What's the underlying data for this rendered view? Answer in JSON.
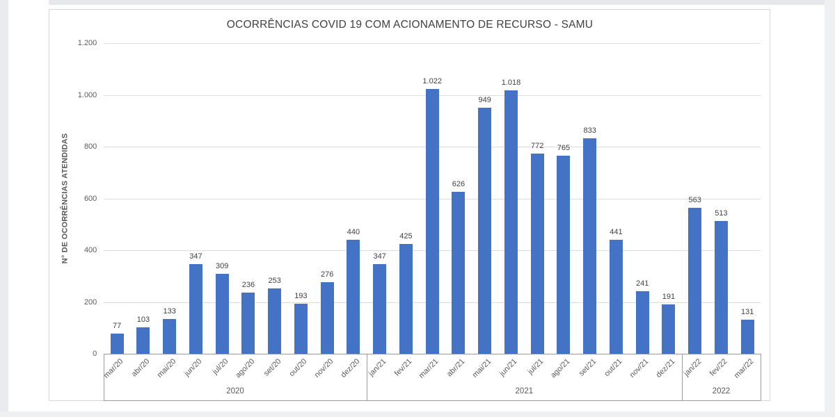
{
  "window": {
    "background_color": "#ffffff",
    "surround_color": "#e9ebee"
  },
  "chart_data": {
    "type": "bar",
    "title": "OCORRÊNCIAS COVID 19 COM ACIONAMENTO DE RECURSO - SAMU",
    "xlabel": "",
    "ylabel": "N° DE OCORRÊNCIAS ATENDIDAS",
    "ylim": [
      0,
      1200
    ],
    "grid": true,
    "legend": "none",
    "bar_color": "#4472C4",
    "gridline_color": "#dcdcdc",
    "axis_color": "#9a9a9a",
    "yticks": [
      {
        "value": 0,
        "label": "0"
      },
      {
        "value": 200,
        "label": "200"
      },
      {
        "value": 400,
        "label": "400"
      },
      {
        "value": 600,
        "label": "600"
      },
      {
        "value": 800,
        "label": "800"
      },
      {
        "value": 1000,
        "label": "1.000"
      },
      {
        "value": 1200,
        "label": "1.200"
      }
    ],
    "categories": [
      "mar/20",
      "abr/20",
      "mai/20",
      "jun/20",
      "jul/20",
      "ago/20",
      "set/20",
      "out/20",
      "nov/20",
      "dez/20",
      "jan/21",
      "fev/21",
      "mar/21",
      "abr/21",
      "mai/21",
      "jun/21",
      "jul/21",
      "ago/21",
      "set/21",
      "out/21",
      "nov/21",
      "dez/21",
      "jan/22",
      "fev/22",
      "mar/22"
    ],
    "values": [
      77,
      103,
      133,
      347,
      309,
      236,
      253,
      193,
      276,
      440,
      347,
      425,
      1022,
      626,
      949,
      1018,
      772,
      765,
      833,
      441,
      241,
      191,
      563,
      513,
      131
    ],
    "value_labels": [
      "77",
      "103",
      "133",
      "347",
      "309",
      "236",
      "253",
      "193",
      "276",
      "440",
      "347",
      "425",
      "1.022",
      "626",
      "949",
      "1.018",
      "772",
      "765",
      "833",
      "441",
      "241",
      "191",
      "563",
      "513",
      "131"
    ],
    "year_groups": [
      {
        "label": "2020",
        "start": 0,
        "count": 10
      },
      {
        "label": "2021",
        "start": 10,
        "count": 12
      },
      {
        "label": "2022",
        "start": 22,
        "count": 3
      }
    ]
  }
}
